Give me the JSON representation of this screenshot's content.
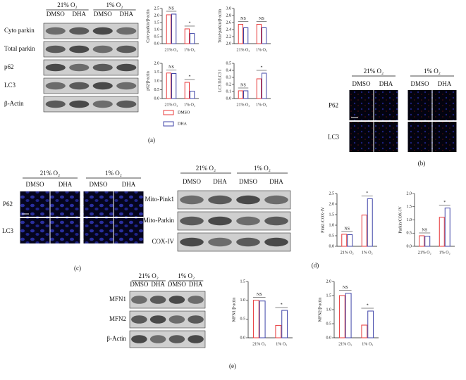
{
  "chart_data": [
    {
      "type": "bar",
      "ylabel": "Cyto-parkin/β-actin",
      "categories": [
        "21% O₂",
        "1% O₂"
      ],
      "series": [
        {
          "name": "DMSO",
          "color": "#e8393a",
          "values": [
            2.05,
            1.05
          ]
        },
        {
          "name": "DHA",
          "color": "#4046a8",
          "values": [
            2.1,
            0.72
          ]
        }
      ],
      "ylim": [
        0,
        2.5
      ],
      "yticks": [
        {
          "value": 0,
          "label": "0.0"
        },
        0.5,
        {
          "value": 1,
          "label": "1.0"
        },
        1.5,
        {
          "value": 2,
          "label": "2.0"
        },
        2.5
      ],
      "annotations": [
        "NS",
        "*"
      ]
    },
    {
      "type": "bar",
      "ylabel": "Total-parkin/β-actin",
      "categories": [
        "21% O₂",
        "1% O₂"
      ],
      "series": [
        {
          "name": "DMSO",
          "color": "#e8393a",
          "values": [
            2.55,
            2.55
          ]
        },
        {
          "name": "DHA",
          "color": "#4046a8",
          "values": [
            2.45,
            2.45
          ]
        }
      ],
      "ylim": [
        2,
        3
      ],
      "yticks": [
        {
          "value": 2,
          "label": "2.0"
        },
        2.2,
        2.4,
        2.6,
        2.8,
        {
          "value": 3,
          "label": "3.0"
        }
      ],
      "annotations": [
        "NS",
        "NS"
      ]
    },
    {
      "type": "bar",
      "ylabel": "p62/β-actin",
      "categories": [
        "21% O₂",
        "1% O₂"
      ],
      "series": [
        {
          "name": "DMSO",
          "color": "#e8393a",
          "values": [
            1.45,
            0.92
          ]
        },
        {
          "name": "DHA",
          "color": "#4046a8",
          "values": [
            1.42,
            0.42
          ]
        }
      ],
      "ylim": [
        0,
        2
      ],
      "yticks": [
        {
          "value": 0,
          "label": "0.0"
        },
        0.5,
        {
          "value": 1,
          "label": "1.0"
        },
        1.5,
        {
          "value": 2,
          "label": "2.0"
        }
      ],
      "annotations": [
        "NS",
        "*"
      ]
    },
    {
      "type": "bar",
      "ylabel": "LC3 II/LC3 I",
      "categories": [
        "21% O₂",
        "1% O₂"
      ],
      "series": [
        {
          "name": "DMSO",
          "color": "#e8393a",
          "values": [
            0.11,
            0.28
          ]
        },
        {
          "name": "DHA",
          "color": "#4046a8",
          "values": [
            0.11,
            0.36
          ]
        }
      ],
      "ylim": [
        0,
        0.5
      ],
      "yticks": [
        {
          "value": 0,
          "label": "0.0"
        },
        0.1,
        0.2,
        0.3,
        0.4,
        0.5
      ],
      "annotations": [
        "NS",
        "*"
      ]
    },
    {
      "type": "bar",
      "ylabel": "Pink1/COX-IV",
      "categories": [
        "21% O₂",
        "1% O₂"
      ],
      "series": [
        {
          "name": "DMSO",
          "color": "#e8393a",
          "values": [
            0.57,
            1.48
          ]
        },
        {
          "name": "DHA",
          "color": "#4046a8",
          "values": [
            0.55,
            2.25
          ]
        }
      ],
      "ylim": [
        0,
        2.5
      ],
      "yticks": [
        {
          "value": 0,
          "label": "0.0"
        },
        0.5,
        {
          "value": 1,
          "label": "1.0"
        },
        1.5,
        {
          "value": 2,
          "label": "2.0"
        },
        2.5
      ],
      "annotations": [
        "NS",
        "*"
      ]
    },
    {
      "type": "bar",
      "ylabel": "Parkin/COX-IV",
      "categories": [
        "21% O₂",
        "1% O₂"
      ],
      "series": [
        {
          "name": "DMSO",
          "color": "#e8393a",
          "values": [
            0.4,
            1.1
          ]
        },
        {
          "name": "DHA",
          "color": "#4046a8",
          "values": [
            0.38,
            1.45
          ]
        }
      ],
      "ylim": [
        0,
        2
      ],
      "yticks": [
        {
          "value": 0,
          "label": "0.0"
        },
        0.5,
        {
          "value": 1,
          "label": "1.0"
        },
        1.5,
        {
          "value": 2,
          "label": "2.0"
        }
      ],
      "annotations": [
        "NS",
        "*"
      ]
    },
    {
      "type": "bar",
      "ylabel": "MFN1/β-actin",
      "categories": [
        "21% O₂",
        "1% O₂"
      ],
      "series": [
        {
          "name": "DMSO",
          "color": "#e8393a",
          "values": [
            1.0,
            0.33
          ]
        },
        {
          "name": "DHA",
          "color": "#4046a8",
          "values": [
            0.98,
            0.73
          ]
        }
      ],
      "ylim": [
        0,
        1.5
      ],
      "yticks": [
        {
          "value": 0,
          "label": "0.0"
        },
        0.5,
        {
          "value": 1,
          "label": "1.0"
        },
        1.5
      ],
      "annotations": [
        "NS",
        "*"
      ]
    },
    {
      "type": "bar",
      "ylabel": "MFN2/β-actin",
      "categories": [
        "21% O₂",
        "1% O₂"
      ],
      "series": [
        {
          "name": "DMSO",
          "color": "#e8393a",
          "values": [
            1.5,
            0.45
          ]
        },
        {
          "name": "DHA",
          "color": "#4046a8",
          "values": [
            1.58,
            0.95
          ]
        }
      ],
      "ylim": [
        0,
        2
      ],
      "yticks": [
        {
          "value": 0,
          "label": "0.0"
        },
        0.5,
        {
          "value": 1,
          "label": "1.0"
        },
        1.5,
        {
          "value": 2,
          "label": "2.0"
        }
      ],
      "annotations": [
        "NS",
        "*"
      ]
    }
  ],
  "panels": {
    "a": {
      "label": "(a)",
      "groups": [
        "21% O₂",
        "1% O₂"
      ],
      "columns": [
        "DMSO",
        "DHA",
        "DMSO",
        "DHA"
      ],
      "rows": [
        "Cyto parkin",
        "Total parkin",
        "p62",
        "LC3",
        "β-Actin"
      ]
    },
    "b": {
      "label": "(b)",
      "groups": [
        "21% O₂",
        "1% O₂"
      ],
      "columns": [
        "DMSO",
        "DHA",
        "DMSO",
        "DHA"
      ],
      "rows": [
        "P62",
        "LC3"
      ]
    },
    "c": {
      "label": "(c)",
      "groups": [
        "21% O₂",
        "1% O₂"
      ],
      "columns": [
        "DMSO",
        "DHA",
        "DMSO",
        "DHA"
      ],
      "rows": [
        "P62",
        "LC3"
      ]
    },
    "d": {
      "label": "(d)",
      "groups": [
        "21% O₂",
        "1% O₂"
      ],
      "columns": [
        "DMSO",
        "DHA",
        "DMSO",
        "DHA"
      ],
      "rows": [
        "Mito-Pink1",
        "Mito-Parkin",
        "COX-IV"
      ]
    },
    "e": {
      "label": "(e)",
      "groups": [
        "21% O₂",
        "1% O₂"
      ],
      "columns": [
        "DMSO",
        "DHA",
        "DMSO",
        "DHA"
      ],
      "rows": [
        "MFN1",
        "MFN2",
        "β-Actin"
      ]
    }
  }
}
